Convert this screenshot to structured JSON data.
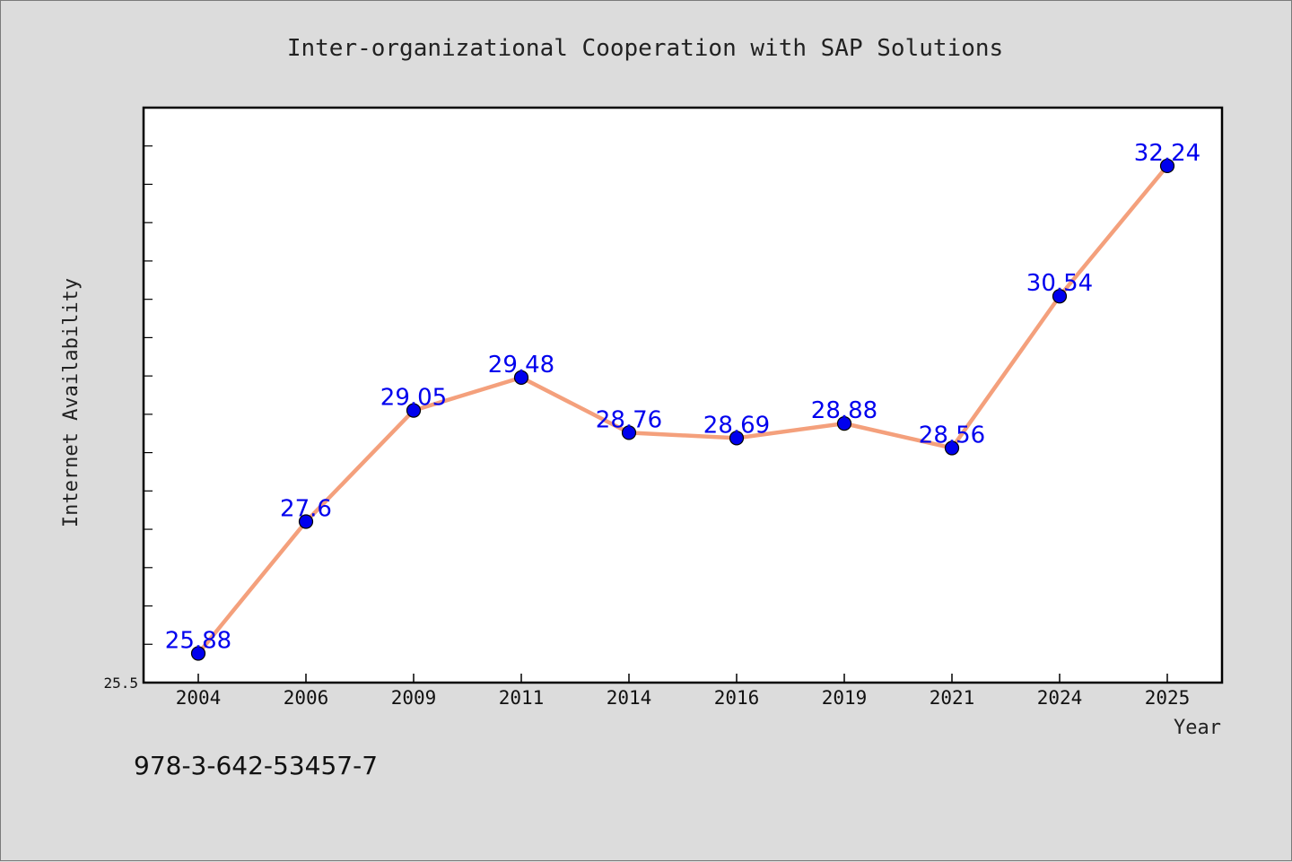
{
  "chart_data": {
    "type": "line",
    "title": "Inter-organizational Cooperation with SAP Solutions",
    "xlabel": "Year",
    "ylabel": "Internet Availability",
    "categories": [
      "2004",
      "2006",
      "2009",
      "2011",
      "2014",
      "2016",
      "2019",
      "2021",
      "2024",
      "2025"
    ],
    "series": [
      {
        "values": [
          25.88,
          27.6,
          29.05,
          29.48,
          28.76,
          28.69,
          28.88,
          28.56,
          30.54,
          32.24
        ],
        "labels": [
          "25.88",
          "27.6",
          "29.05",
          "29.48",
          "28.76",
          "28.69",
          "28.88",
          "28.56",
          "30.54",
          "32.24"
        ]
      }
    ],
    "ylim": [
      25.5,
      33.0
    ],
    "y_tick_labels": [
      "25.5"
    ],
    "grid": false,
    "colors": {
      "line": "#f4a07c",
      "marker": "#0000ee",
      "label": "#0000ee"
    }
  },
  "footnote": "978-3-642-53457-7"
}
